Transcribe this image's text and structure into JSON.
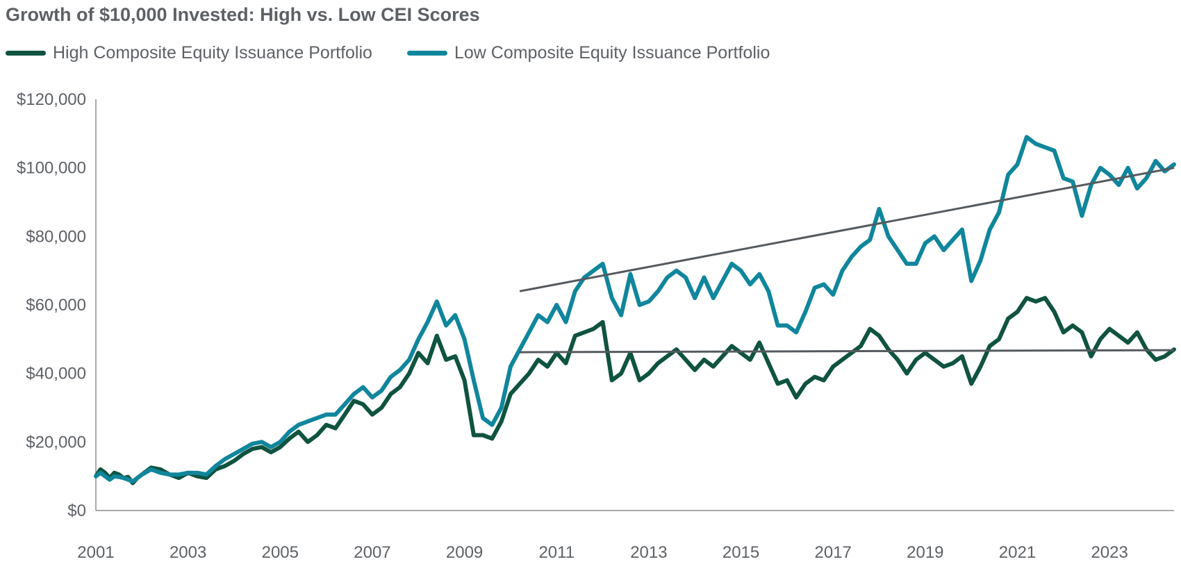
{
  "chart_data": {
    "type": "line",
    "title": "Growth of $10,000 Invested: High vs. Low CEI Scores",
    "xlabel": "",
    "ylabel": "",
    "ylim": [
      0,
      120000
    ],
    "xlim": [
      2001.0,
      2024.4
    ],
    "grid": false,
    "legend_position": "top-left",
    "y_ticks": [
      0,
      20000,
      40000,
      60000,
      80000,
      100000,
      120000
    ],
    "y_tick_labels": [
      "$0",
      "$20,000",
      "$40,000",
      "$60,000",
      "$80,000",
      "$100,000",
      "$120,000"
    ],
    "x_tick_labels": [
      "2001",
      "2003",
      "2005",
      "2007",
      "2009",
      "2011",
      "2013",
      "2015",
      "2017",
      "2019",
      "2021",
      "2023"
    ],
    "series": [
      {
        "name": "High Composite Equity Issuance Portfolio",
        "color": "#0f5340",
        "x": [
          2001.0,
          2001.1,
          2001.2,
          2001.3,
          2001.4,
          2001.5,
          2001.6,
          2001.7,
          2001.8,
          2001.9,
          2002.0,
          2002.2,
          2002.4,
          2002.6,
          2002.8,
          2003.0,
          2003.2,
          2003.4,
          2003.6,
          2003.8,
          2004.0,
          2004.2,
          2004.4,
          2004.6,
          2004.8,
          2005.0,
          2005.2,
          2005.4,
          2005.6,
          2005.8,
          2006.0,
          2006.2,
          2006.4,
          2006.6,
          2006.8,
          2007.0,
          2007.2,
          2007.4,
          2007.6,
          2007.8,
          2008.0,
          2008.2,
          2008.4,
          2008.6,
          2008.8,
          2009.0,
          2009.2,
          2009.4,
          2009.6,
          2009.8,
          2010.0,
          2010.2,
          2010.4,
          2010.6,
          2010.8,
          2011.0,
          2011.2,
          2011.4,
          2011.6,
          2011.8,
          2012.0,
          2012.2,
          2012.4,
          2012.6,
          2012.8,
          2013.0,
          2013.2,
          2013.4,
          2013.6,
          2013.8,
          2014.0,
          2014.2,
          2014.4,
          2014.6,
          2014.8,
          2015.0,
          2015.2,
          2015.4,
          2015.6,
          2015.8,
          2016.0,
          2016.2,
          2016.4,
          2016.6,
          2016.8,
          2017.0,
          2017.2,
          2017.4,
          2017.6,
          2017.8,
          2018.0,
          2018.2,
          2018.4,
          2018.6,
          2018.8,
          2019.0,
          2019.2,
          2019.4,
          2019.6,
          2019.8,
          2020.0,
          2020.2,
          2020.4,
          2020.6,
          2020.8,
          2021.0,
          2021.2,
          2021.4,
          2021.6,
          2021.8,
          2022.0,
          2022.2,
          2022.4,
          2022.6,
          2022.8,
          2023.0,
          2023.2,
          2023.4,
          2023.6,
          2023.8,
          2024.0,
          2024.2,
          2024.4
        ],
        "values": [
          10000,
          12000,
          11000,
          9500,
          11000,
          10500,
          9500,
          9800,
          8000,
          9500,
          10500,
          12500,
          12000,
          10500,
          9500,
          11000,
          10000,
          9500,
          12000,
          13000,
          14500,
          16500,
          18000,
          18500,
          17000,
          18500,
          21000,
          23000,
          20000,
          22000,
          25000,
          24000,
          28000,
          32000,
          31000,
          28000,
          30000,
          34000,
          36000,
          40000,
          46000,
          43000,
          51000,
          44000,
          45000,
          38000,
          22000,
          22000,
          21000,
          26000,
          34000,
          37000,
          40000,
          44000,
          42000,
          46000,
          43000,
          51000,
          52000,
          53000,
          55000,
          38000,
          40000,
          46000,
          38000,
          40000,
          43000,
          45000,
          47000,
          44000,
          41000,
          44000,
          42000,
          45000,
          48000,
          46000,
          44000,
          49000,
          43000,
          37000,
          38000,
          33000,
          37000,
          39000,
          38000,
          42000,
          44000,
          46000,
          48000,
          53000,
          51000,
          47000,
          44000,
          40000,
          44000,
          46000,
          44000,
          42000,
          43000,
          45000,
          37000,
          42000,
          48000,
          50000,
          56000,
          58000,
          62000,
          61000,
          62000,
          58000,
          52000,
          54000,
          52000,
          45000,
          50000,
          53000,
          51000,
          49000,
          52000,
          47000,
          44000,
          45000,
          47000
        ],
        "trend": {
          "x": [
            2010.2,
            2024.4
          ],
          "values": [
            46200,
            46800
          ]
        }
      },
      {
        "name": "Low Composite Equity Issuance Portfolio",
        "color": "#10869c",
        "x": [
          2001.0,
          2001.1,
          2001.2,
          2001.3,
          2001.4,
          2001.5,
          2001.6,
          2001.7,
          2001.8,
          2001.9,
          2002.0,
          2002.2,
          2002.4,
          2002.6,
          2002.8,
          2003.0,
          2003.2,
          2003.4,
          2003.6,
          2003.8,
          2004.0,
          2004.2,
          2004.4,
          2004.6,
          2004.8,
          2005.0,
          2005.2,
          2005.4,
          2005.6,
          2005.8,
          2006.0,
          2006.2,
          2006.4,
          2006.6,
          2006.8,
          2007.0,
          2007.2,
          2007.4,
          2007.6,
          2007.8,
          2008.0,
          2008.2,
          2008.4,
          2008.6,
          2008.8,
          2009.0,
          2009.2,
          2009.4,
          2009.6,
          2009.8,
          2010.0,
          2010.2,
          2010.4,
          2010.6,
          2010.8,
          2011.0,
          2011.2,
          2011.4,
          2011.6,
          2011.8,
          2012.0,
          2012.2,
          2012.4,
          2012.6,
          2012.8,
          2013.0,
          2013.2,
          2013.4,
          2013.6,
          2013.8,
          2014.0,
          2014.2,
          2014.4,
          2014.6,
          2014.8,
          2015.0,
          2015.2,
          2015.4,
          2015.6,
          2015.8,
          2016.0,
          2016.2,
          2016.4,
          2016.6,
          2016.8,
          2017.0,
          2017.2,
          2017.4,
          2017.6,
          2017.8,
          2018.0,
          2018.2,
          2018.4,
          2018.6,
          2018.8,
          2019.0,
          2019.2,
          2019.4,
          2019.6,
          2019.8,
          2020.0,
          2020.2,
          2020.4,
          2020.6,
          2020.8,
          2021.0,
          2021.2,
          2021.4,
          2021.6,
          2021.8,
          2022.0,
          2022.2,
          2022.4,
          2022.6,
          2022.8,
          2023.0,
          2023.2,
          2023.4,
          2023.6,
          2023.8,
          2024.0,
          2024.2,
          2024.4
        ],
        "values": [
          10000,
          11000,
          10000,
          9000,
          10000,
          9800,
          9500,
          9000,
          8500,
          9500,
          10500,
          12000,
          11000,
          10500,
          10500,
          11000,
          11000,
          10500,
          13000,
          15000,
          16500,
          18000,
          19500,
          20000,
          18500,
          20000,
          23000,
          25000,
          26000,
          27000,
          28000,
          28000,
          31000,
          34000,
          36000,
          33000,
          35000,
          39000,
          41000,
          44000,
          50000,
          55000,
          61000,
          54000,
          57000,
          50000,
          38000,
          27000,
          25000,
          30000,
          42000,
          47000,
          52000,
          57000,
          55000,
          60000,
          55000,
          64000,
          68000,
          70000,
          72000,
          62000,
          57000,
          69000,
          60000,
          61000,
          64000,
          68000,
          70000,
          68000,
          62000,
          68000,
          62000,
          67000,
          72000,
          70000,
          66000,
          69000,
          64000,
          54000,
          54000,
          52000,
          58000,
          65000,
          66000,
          63000,
          70000,
          74000,
          77000,
          79000,
          88000,
          80000,
          76000,
          72000,
          72000,
          78000,
          80000,
          76000,
          79000,
          82000,
          67000,
          73000,
          82000,
          87000,
          98000,
          101000,
          109000,
          107000,
          106000,
          105000,
          97000,
          96000,
          86000,
          95000,
          100000,
          98000,
          95000,
          100000,
          94000,
          97000,
          102000,
          99000,
          101000
        ],
        "trend": {
          "x": [
            2010.2,
            2024.4
          ],
          "values": [
            64000,
            100000
          ]
        }
      }
    ]
  }
}
